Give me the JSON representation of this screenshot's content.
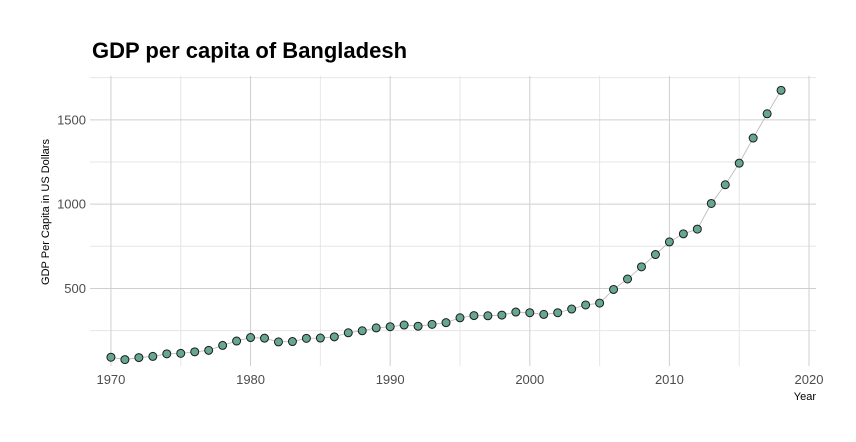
{
  "chart_data": {
    "type": "line",
    "title": "GDP per capita of Bangladesh",
    "xlabel": "Year",
    "ylabel": "GDP Per Capita in US Dollars",
    "xlim": [
      1968.5,
      2020.5
    ],
    "ylim": [
      40,
      1760
    ],
    "x_ticks": [
      1970,
      1980,
      1990,
      2000,
      2010,
      2020
    ],
    "y_ticks": [
      500,
      1000,
      1500
    ],
    "grid": true,
    "legend": "none",
    "marker": "circle",
    "colors": {
      "marker_fill": "#66a88f",
      "marker_stroke": "#1a1a1a",
      "line": "#b5b5b5"
    },
    "series": [
      {
        "x": [
          1970,
          1971,
          1972,
          1973,
          1974,
          1975,
          1976,
          1977,
          1978,
          1979,
          1980,
          1981,
          1982,
          1983,
          1984,
          1985,
          1986,
          1987,
          1988,
          1989,
          1990,
          1991,
          1992,
          1993,
          1994,
          1995,
          1996,
          1997,
          1998,
          1999,
          2000,
          2001,
          2002,
          2003,
          2004,
          2005,
          2006,
          2007,
          2008,
          2009,
          2010,
          2011,
          2012,
          2013,
          2014,
          2015,
          2016,
          2017,
          2018
        ],
        "y": [
          92,
          78,
          90,
          97,
          112,
          115,
          124,
          133,
          162,
          188,
          209,
          205,
          183,
          185,
          204,
          206,
          213,
          237,
          249,
          266,
          273,
          283,
          276,
          287,
          297,
          326,
          339,
          338,
          342,
          360,
          356,
          346,
          356,
          378,
          402,
          413,
          494,
          556,
          628,
          701,
          776,
          824,
          852,
          1004,
          1115,
          1243,
          1392,
          1536,
          1675
        ]
      }
    ]
  }
}
